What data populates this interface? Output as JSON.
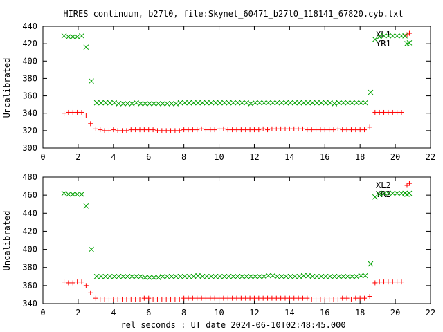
{
  "page_title": "HIRES continuum, b27l0, file:Skynet_60471_b27l0_118141_67820.cyb.txt",
  "x_axis_title": "rel seconds : UT date 2024-06-10T02:48:45.000",
  "chart_data": [
    {
      "type": "scatter",
      "title": "",
      "xlabel": "",
      "ylabel": "Uncalibrated",
      "xlim": [
        0,
        22
      ],
      "ylim": [
        300,
        440
      ],
      "xticks": [
        0,
        2,
        4,
        6,
        8,
        10,
        12,
        14,
        16,
        18,
        20,
        22
      ],
      "yticks": [
        300,
        320,
        340,
        360,
        380,
        400,
        420,
        440
      ],
      "legend_position": "top-right",
      "series": [
        {
          "name": "XL1",
          "marker": "plus",
          "color": "#ff0000",
          "x": [
            1.2,
            1.45,
            1.7,
            1.95,
            2.2,
            2.45,
            2.7,
            3.0,
            3.25,
            3.5,
            3.75,
            4.0,
            4.25,
            4.5,
            4.75,
            5.0,
            5.25,
            5.5,
            5.75,
            6.0,
            6.25,
            6.5,
            6.75,
            7.0,
            7.25,
            7.5,
            7.75,
            8.0,
            8.25,
            8.5,
            8.75,
            9.0,
            9.25,
            9.5,
            9.75,
            10.0,
            10.25,
            10.5,
            10.75,
            11.0,
            11.25,
            11.5,
            11.75,
            12.0,
            12.25,
            12.5,
            12.75,
            13.0,
            13.25,
            13.5,
            13.75,
            14.0,
            14.25,
            14.5,
            14.75,
            15.0,
            15.25,
            15.5,
            15.75,
            16.0,
            16.25,
            16.5,
            16.75,
            17.0,
            17.25,
            17.5,
            17.75,
            18.0,
            18.25,
            18.55,
            18.85,
            19.1,
            19.35,
            19.6,
            19.85,
            20.1,
            20.35,
            20.8
          ],
          "y": [
            340,
            341,
            341,
            341,
            341,
            337,
            328,
            322,
            321,
            320,
            320,
            321,
            320,
            320,
            320,
            321,
            321,
            321,
            321,
            321,
            321,
            320,
            320,
            320,
            320,
            320,
            320,
            321,
            321,
            321,
            321,
            322,
            321,
            321,
            321,
            322,
            322,
            321,
            321,
            321,
            321,
            321,
            321,
            321,
            321,
            322,
            321,
            322,
            322,
            322,
            322,
            322,
            322,
            322,
            322,
            321,
            321,
            321,
            321,
            321,
            321,
            321,
            322,
            321,
            321,
            321,
            321,
            321,
            321,
            324,
            341,
            341,
            341,
            341,
            341,
            341,
            341,
            432
          ]
        },
        {
          "name": "YR1",
          "marker": "cross",
          "color": "#00a000",
          "x": [
            1.2,
            1.45,
            1.7,
            1.95,
            2.2,
            2.45,
            2.75,
            3.05,
            3.3,
            3.55,
            3.8,
            4.05,
            4.3,
            4.55,
            4.8,
            5.05,
            5.3,
            5.55,
            5.8,
            6.05,
            6.3,
            6.55,
            6.8,
            7.05,
            7.3,
            7.55,
            7.8,
            8.05,
            8.3,
            8.55,
            8.8,
            9.05,
            9.3,
            9.55,
            9.8,
            10.05,
            10.3,
            10.55,
            10.8,
            11.05,
            11.3,
            11.55,
            11.8,
            12.05,
            12.3,
            12.55,
            12.8,
            13.05,
            13.3,
            13.55,
            13.8,
            14.05,
            14.3,
            14.55,
            14.8,
            15.05,
            15.3,
            15.55,
            15.8,
            16.05,
            16.3,
            16.55,
            16.8,
            17.05,
            17.3,
            17.55,
            17.8,
            18.05,
            18.3,
            18.6,
            18.85,
            19.1,
            19.35,
            19.6,
            19.85,
            20.1,
            20.35,
            20.55,
            20.8
          ],
          "y": [
            429,
            428,
            428,
            428,
            429,
            416,
            377,
            352,
            352,
            352,
            352,
            352,
            351,
            351,
            351,
            351,
            352,
            351,
            351,
            351,
            351,
            351,
            351,
            351,
            351,
            351,
            352,
            352,
            352,
            352,
            352,
            352,
            352,
            352,
            352,
            352,
            352,
            352,
            352,
            352,
            352,
            352,
            351,
            352,
            352,
            352,
            352,
            352,
            352,
            352,
            352,
            352,
            352,
            352,
            352,
            352,
            352,
            352,
            352,
            352,
            352,
            351,
            352,
            352,
            352,
            352,
            352,
            352,
            352,
            364,
            425,
            428,
            429,
            429,
            429,
            429,
            429,
            429,
            421
          ]
        }
      ]
    },
    {
      "type": "scatter",
      "title": "",
      "xlabel": "rel seconds : UT date 2024-06-10T02:48:45.000",
      "ylabel": "Uncalibrated",
      "xlim": [
        0,
        22
      ],
      "ylim": [
        340,
        480
      ],
      "xticks": [
        0,
        2,
        4,
        6,
        8,
        10,
        12,
        14,
        16,
        18,
        20,
        22
      ],
      "yticks": [
        340,
        360,
        380,
        400,
        420,
        440,
        460,
        480
      ],
      "legend_position": "top-right",
      "series": [
        {
          "name": "XL2",
          "marker": "plus",
          "color": "#ff0000",
          "x": [
            1.2,
            1.45,
            1.7,
            1.95,
            2.2,
            2.45,
            2.7,
            3.0,
            3.25,
            3.5,
            3.75,
            4.0,
            4.25,
            4.5,
            4.75,
            5.0,
            5.25,
            5.5,
            5.75,
            6.0,
            6.25,
            6.5,
            6.75,
            7.0,
            7.25,
            7.5,
            7.75,
            8.0,
            8.25,
            8.5,
            8.75,
            9.0,
            9.25,
            9.5,
            9.75,
            10.0,
            10.25,
            10.5,
            10.75,
            11.0,
            11.25,
            11.5,
            11.75,
            12.0,
            12.25,
            12.5,
            12.75,
            13.0,
            13.25,
            13.5,
            13.75,
            14.0,
            14.25,
            14.5,
            14.75,
            15.0,
            15.25,
            15.5,
            15.75,
            16.0,
            16.25,
            16.5,
            16.75,
            17.0,
            17.25,
            17.5,
            17.75,
            18.0,
            18.25,
            18.55,
            18.85,
            19.1,
            19.35,
            19.6,
            19.85,
            20.1,
            20.35,
            20.8
          ],
          "y": [
            364,
            363,
            363,
            364,
            364,
            360,
            352,
            346,
            345,
            345,
            345,
            345,
            345,
            345,
            345,
            345,
            345,
            345,
            346,
            346,
            345,
            345,
            345,
            345,
            345,
            345,
            345,
            346,
            346,
            346,
            346,
            346,
            346,
            346,
            346,
            346,
            346,
            346,
            346,
            346,
            346,
            346,
            346,
            346,
            346,
            346,
            346,
            346,
            346,
            346,
            346,
            346,
            346,
            346,
            346,
            346,
            345,
            345,
            345,
            345,
            345,
            345,
            345,
            346,
            346,
            345,
            346,
            346,
            346,
            348,
            363,
            364,
            364,
            364,
            364,
            364,
            364,
            473
          ]
        },
        {
          "name": "YR2",
          "marker": "cross",
          "color": "#00a000",
          "x": [
            1.2,
            1.45,
            1.7,
            1.95,
            2.2,
            2.45,
            2.75,
            3.05,
            3.3,
            3.55,
            3.8,
            4.05,
            4.3,
            4.55,
            4.8,
            5.05,
            5.3,
            5.55,
            5.8,
            6.05,
            6.3,
            6.55,
            6.8,
            7.05,
            7.3,
            7.55,
            7.8,
            8.05,
            8.3,
            8.55,
            8.8,
            9.05,
            9.3,
            9.55,
            9.8,
            10.05,
            10.3,
            10.55,
            10.8,
            11.05,
            11.3,
            11.55,
            11.8,
            12.05,
            12.3,
            12.55,
            12.8,
            13.05,
            13.3,
            13.55,
            13.8,
            14.05,
            14.3,
            14.55,
            14.8,
            15.05,
            15.3,
            15.55,
            15.8,
            16.05,
            16.3,
            16.55,
            16.8,
            17.05,
            17.3,
            17.55,
            17.8,
            18.05,
            18.3,
            18.6,
            18.85,
            19.1,
            19.35,
            19.6,
            19.85,
            20.1,
            20.35,
            20.55,
            20.8
          ],
          "y": [
            462,
            461,
            461,
            461,
            461,
            448,
            400,
            370,
            370,
            370,
            370,
            370,
            370,
            370,
            370,
            370,
            370,
            370,
            369,
            369,
            369,
            369,
            370,
            370,
            370,
            370,
            370,
            370,
            370,
            370,
            371,
            370,
            370,
            370,
            370,
            370,
            370,
            370,
            370,
            370,
            370,
            370,
            370,
            370,
            370,
            370,
            371,
            371,
            370,
            370,
            370,
            370,
            370,
            370,
            371,
            371,
            370,
            370,
            370,
            370,
            370,
            370,
            370,
            370,
            370,
            370,
            370,
            371,
            371,
            384,
            458,
            461,
            462,
            462,
            462,
            462,
            462,
            462,
            462
          ]
        }
      ]
    }
  ]
}
